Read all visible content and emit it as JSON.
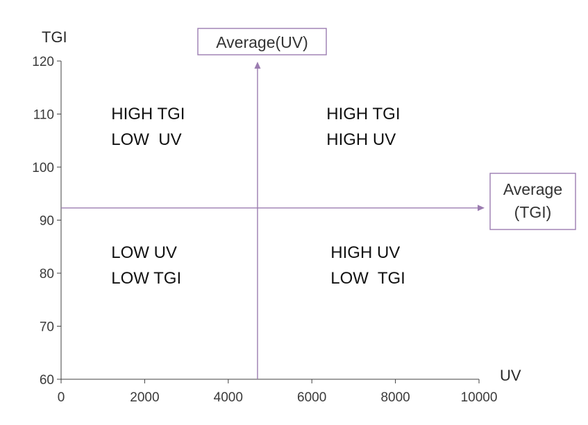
{
  "chart_data": {
    "type": "scatter",
    "title": "",
    "xlabel": "UV",
    "ylabel": "TGI",
    "xlim": [
      0,
      10000
    ],
    "ylim": [
      60,
      120
    ],
    "xticks": [
      0,
      2000,
      4000,
      6000,
      8000,
      10000
    ],
    "yticks": [
      60,
      70,
      80,
      90,
      100,
      110,
      120
    ],
    "xtick_labels": [
      "0",
      "2000",
      "4000",
      "6000",
      "8000",
      "10000"
    ],
    "ytick_labels": [
      "60",
      "70",
      "80",
      "90",
      "100",
      "110",
      "120"
    ],
    "grid": false,
    "reference_lines": [
      {
        "orientation": "vertical",
        "value": 4700,
        "label": "Average(UV)"
      },
      {
        "orientation": "horizontal",
        "value": 92.3,
        "label_lines": [
          "Average",
          "(TGI)"
        ]
      }
    ],
    "quadrants": [
      {
        "id": "top-left",
        "x": 1200,
        "y": 108,
        "lines": [
          "HIGH TGI",
          "LOW  UV"
        ]
      },
      {
        "id": "top-right",
        "x": 6350,
        "y": 108,
        "lines": [
          "HIGH TGI",
          "HIGH UV"
        ]
      },
      {
        "id": "bottom-left",
        "x": 1200,
        "y": 81.8,
        "lines": [
          "LOW UV",
          "LOW TGI"
        ]
      },
      {
        "id": "bottom-right",
        "x": 6450,
        "y": 81.8,
        "lines": [
          "HIGH UV",
          "LOW  TGI"
        ]
      }
    ],
    "colors": {
      "reference": "#9b7cb0",
      "axis": "#404040",
      "box_border": "#9b7cb0"
    }
  }
}
